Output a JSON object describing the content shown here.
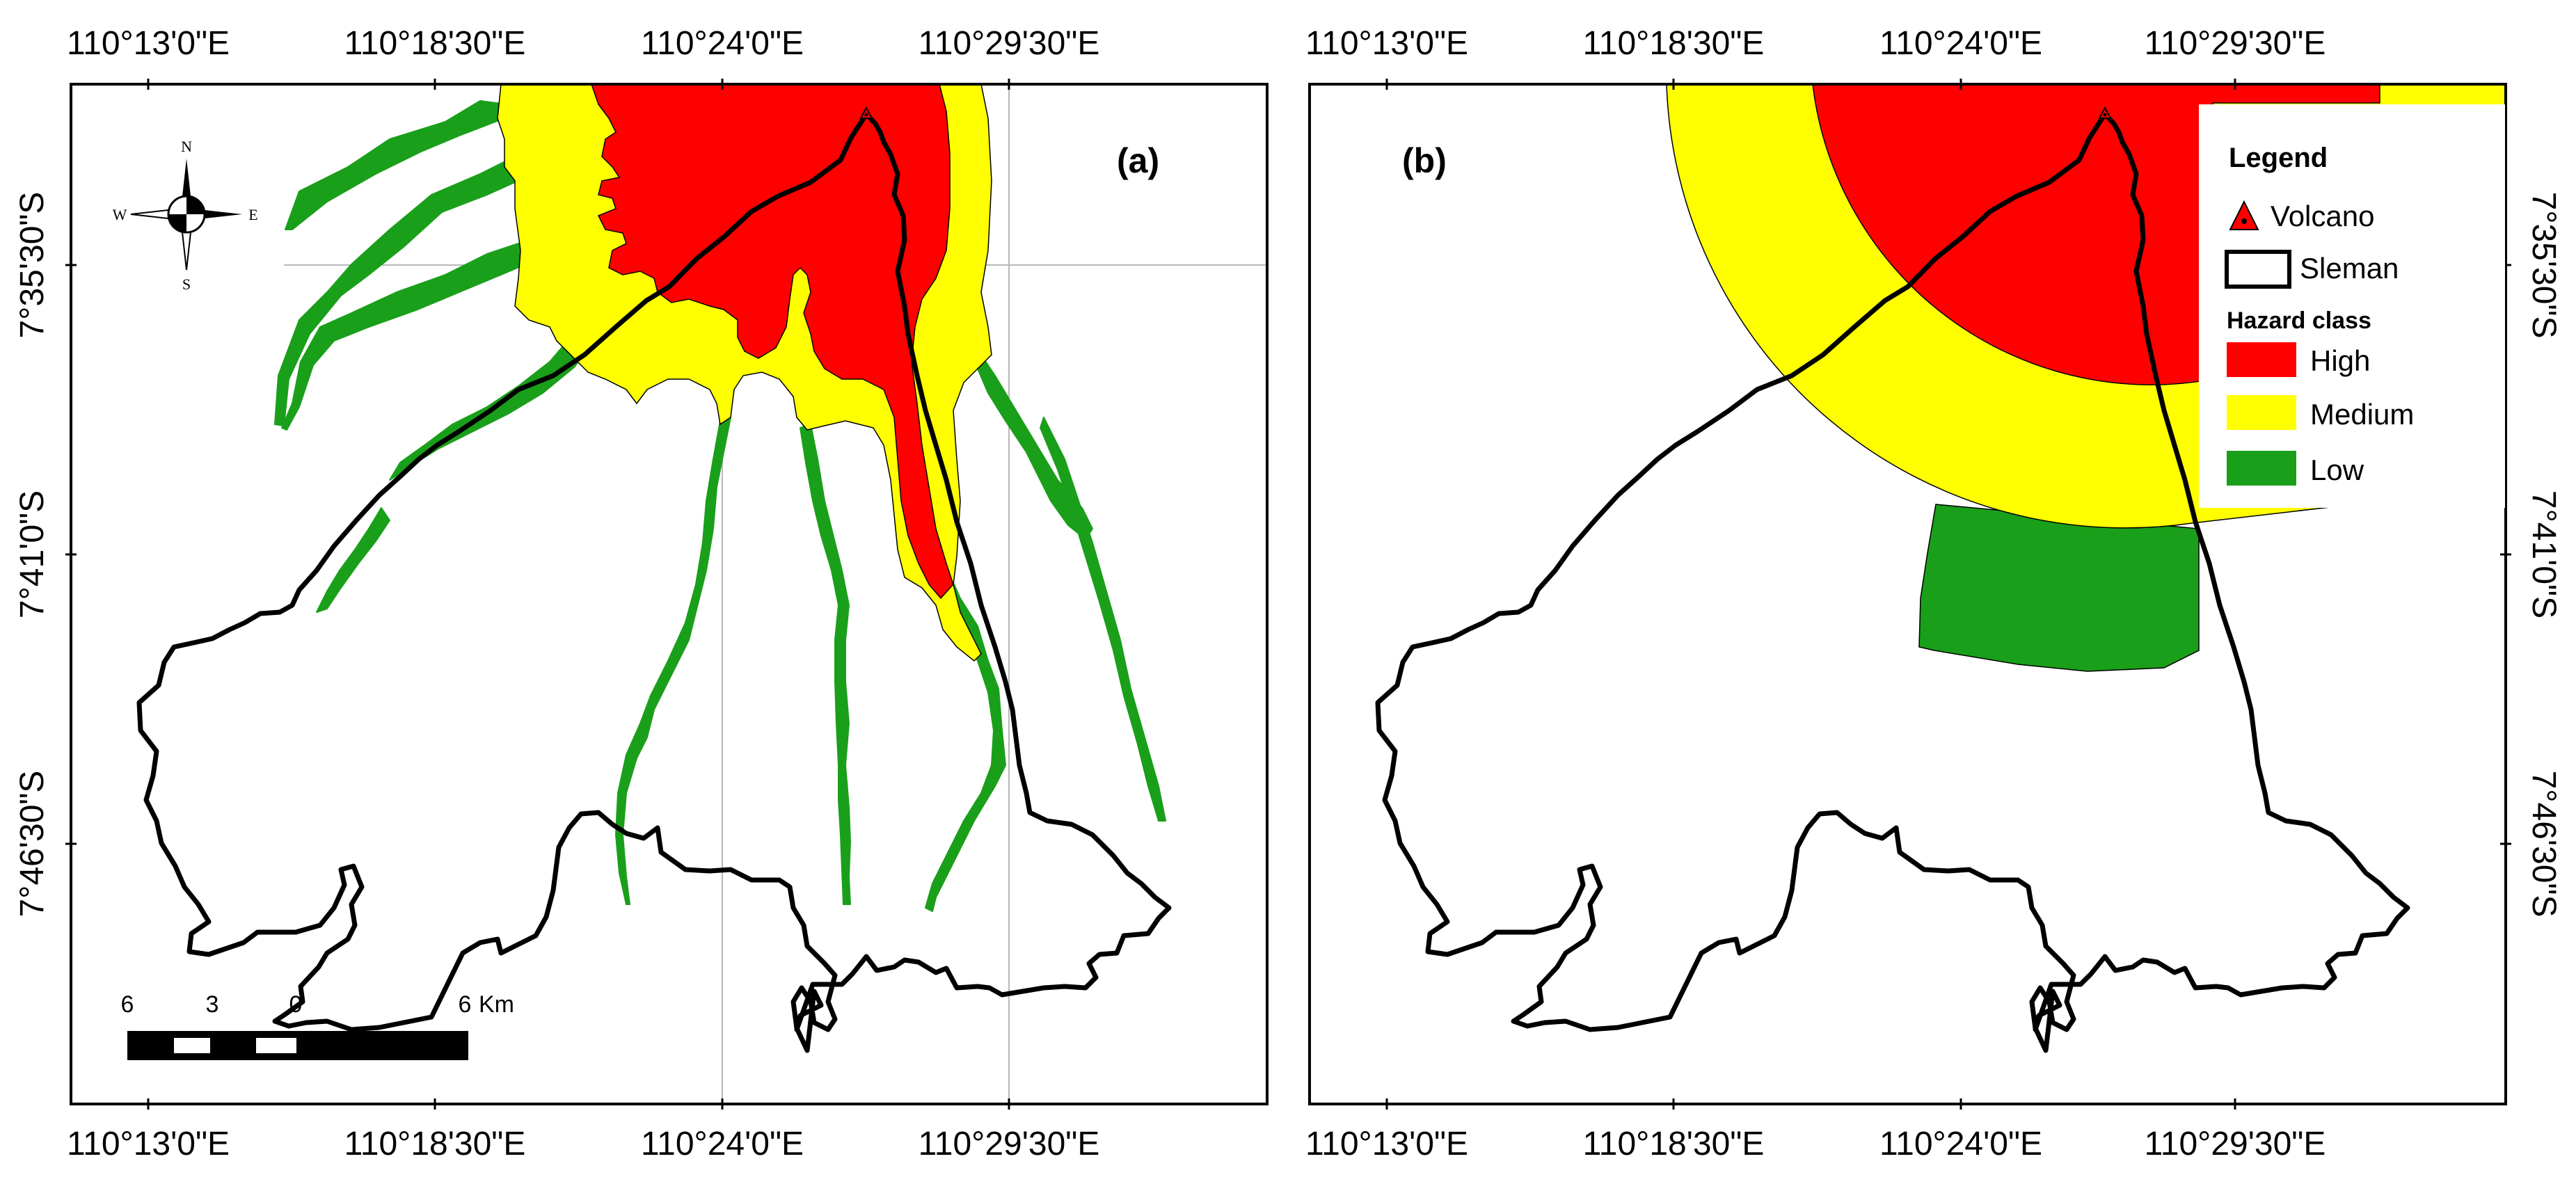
{
  "panel_a": {
    "label": "(a)",
    "top_lon_labels": [
      "110°13'0\"E",
      "110°18'30\"E",
      "110°24'0\"E",
      "110°29'30\"E"
    ],
    "bottom_lon_labels": [
      "110°13'0\"E",
      "110°18'30\"E",
      "110°24'0\"E",
      "110°29'30\"E"
    ],
    "left_lat_labels": [
      "7°35'30\"S",
      "7°41'0\"S",
      "7°46'30\"S"
    ],
    "compass": {
      "n": "N",
      "s": "S",
      "e": "E",
      "w": "W"
    },
    "scale_bar": {
      "ticks": [
        "6",
        "3",
        "0",
        "6"
      ],
      "unit_suffix": "Km"
    }
  },
  "panel_b": {
    "label": "(b)",
    "top_lon_labels": [
      "110°13'0\"E",
      "110°18'30\"E",
      "110°24'0\"E",
      "110°29'30\"E"
    ],
    "bottom_lon_labels": [
      "110°13'0\"E",
      "110°18'30\"E",
      "110°24'0\"E",
      "110°29'30\"E"
    ],
    "right_lat_labels": [
      "7°35'30\"S",
      "7°41'0\"S",
      "7°46'30\"S"
    ]
  },
  "legend": {
    "title": "Legend",
    "volcano": "Volcano",
    "sleman": "Sleman",
    "hazard_title": "Hazard class",
    "high": "High",
    "medium": "Medium",
    "low": "Low"
  },
  "colors": {
    "high": "#ff0000",
    "medium": "#ffff00",
    "low": "#1a9f1a",
    "boundary": "#000000"
  }
}
